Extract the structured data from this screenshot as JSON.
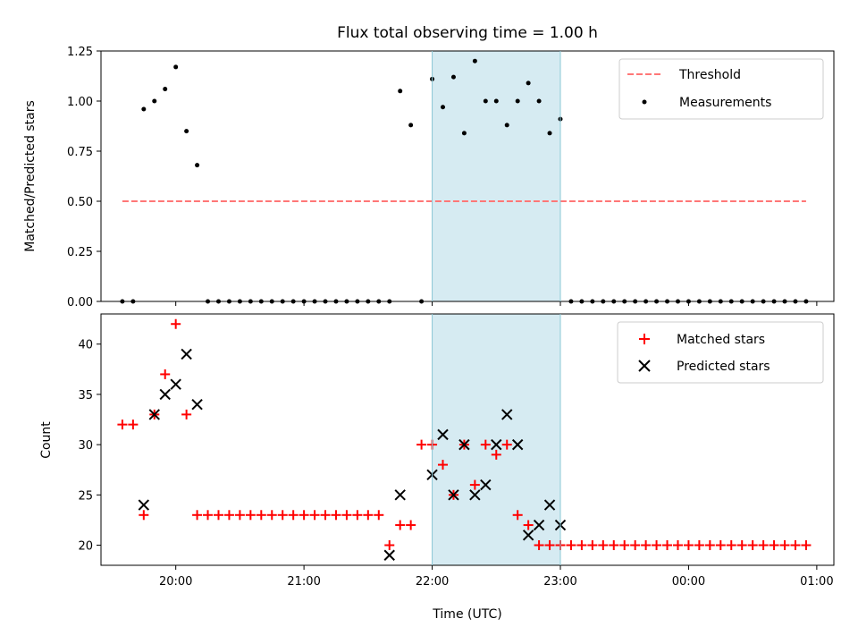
{
  "chart_data": [
    {
      "type": "scatter",
      "title": "Flux total observing time = 1.00 h",
      "xlabel": "",
      "ylabel": "Matched/Predicted stars",
      "xlim": [
        "19:25",
        "01:08"
      ],
      "ylim": [
        0,
        1.25
      ],
      "yticks": [
        "0.00",
        "0.25",
        "0.50",
        "0.75",
        "1.00",
        "1.25"
      ],
      "legend_position": "top-right",
      "shaded_interval": [
        "22:00",
        "23:00"
      ],
      "threshold": {
        "name": "Threshold",
        "value": 0.5,
        "x_start": "19:35",
        "x_end": "00:55",
        "color": "#ff7777"
      },
      "series": [
        {
          "name": "Measurements",
          "color": "#000000",
          "points": [
            [
              "19:35",
              0
            ],
            [
              "19:40",
              0
            ],
            [
              "19:45",
              0.96
            ],
            [
              "19:50",
              1.0
            ],
            [
              "19:55",
              1.06
            ],
            [
              "20:00",
              1.17
            ],
            [
              "20:05",
              0.85
            ],
            [
              "20:10",
              0.68
            ],
            [
              "20:15",
              0
            ],
            [
              "20:20",
              0
            ],
            [
              "20:25",
              0
            ],
            [
              "20:30",
              0
            ],
            [
              "20:35",
              0
            ],
            [
              "20:40",
              0
            ],
            [
              "20:45",
              0
            ],
            [
              "20:50",
              0
            ],
            [
              "20:55",
              0
            ],
            [
              "21:00",
              0
            ],
            [
              "21:05",
              0
            ],
            [
              "21:10",
              0
            ],
            [
              "21:15",
              0
            ],
            [
              "21:20",
              0
            ],
            [
              "21:25",
              0
            ],
            [
              "21:30",
              0
            ],
            [
              "21:35",
              0
            ],
            [
              "21:40",
              0
            ],
            [
              "21:45",
              1.05
            ],
            [
              "21:50",
              0.88
            ],
            [
              "21:55",
              0
            ],
            [
              "22:00",
              1.11
            ],
            [
              "22:05",
              0.97
            ],
            [
              "22:10",
              1.12
            ],
            [
              "22:15",
              0.84
            ],
            [
              "22:20",
              1.2
            ],
            [
              "22:25",
              1.0
            ],
            [
              "22:30",
              1.0
            ],
            [
              "22:35",
              0.88
            ],
            [
              "22:40",
              1.0
            ],
            [
              "22:45",
              1.09
            ],
            [
              "22:50",
              1.0
            ],
            [
              "22:55",
              0.84
            ],
            [
              "23:00",
              0.91
            ],
            [
              "23:05",
              0
            ],
            [
              "23:10",
              0
            ],
            [
              "23:15",
              0
            ],
            [
              "23:20",
              0
            ],
            [
              "23:25",
              0
            ],
            [
              "23:30",
              0
            ],
            [
              "23:35",
              0
            ],
            [
              "23:40",
              0
            ],
            [
              "23:45",
              0
            ],
            [
              "23:50",
              0
            ],
            [
              "23:55",
              0
            ],
            [
              "00:00",
              0
            ],
            [
              "00:05",
              0
            ],
            [
              "00:10",
              0
            ],
            [
              "00:15",
              0
            ],
            [
              "00:20",
              0
            ],
            [
              "00:25",
              0
            ],
            [
              "00:30",
              0
            ],
            [
              "00:35",
              0
            ],
            [
              "00:40",
              0
            ],
            [
              "00:45",
              0
            ],
            [
              "00:50",
              0
            ],
            [
              "00:55",
              0
            ]
          ]
        }
      ]
    },
    {
      "type": "scatter",
      "title": "",
      "xlabel": "Time (UTC)",
      "ylabel": "Count",
      "xlim": [
        "19:25",
        "01:08"
      ],
      "ylim": [
        18,
        43
      ],
      "xticks": [
        "20:00",
        "21:00",
        "22:00",
        "23:00",
        "00:00",
        "01:00"
      ],
      "yticks": [
        "20",
        "25",
        "30",
        "35",
        "40"
      ],
      "legend_position": "top-right",
      "shaded_interval": [
        "22:00",
        "23:00"
      ],
      "series": [
        {
          "name": "Matched stars",
          "color": "#ff0000",
          "marker": "plus",
          "points": [
            [
              "19:35",
              32
            ],
            [
              "19:40",
              32
            ],
            [
              "19:45",
              23
            ],
            [
              "19:50",
              33
            ],
            [
              "19:55",
              37
            ],
            [
              "20:00",
              42
            ],
            [
              "20:05",
              33
            ],
            [
              "20:10",
              23
            ],
            [
              "20:15",
              23
            ],
            [
              "20:20",
              23
            ],
            [
              "20:25",
              23
            ],
            [
              "20:30",
              23
            ],
            [
              "20:35",
              23
            ],
            [
              "20:40",
              23
            ],
            [
              "20:45",
              23
            ],
            [
              "20:50",
              23
            ],
            [
              "20:55",
              23
            ],
            [
              "21:00",
              23
            ],
            [
              "21:05",
              23
            ],
            [
              "21:10",
              23
            ],
            [
              "21:15",
              23
            ],
            [
              "21:20",
              23
            ],
            [
              "21:25",
              23
            ],
            [
              "21:30",
              23
            ],
            [
              "21:35",
              23
            ],
            [
              "21:40",
              20
            ],
            [
              "21:45",
              22
            ],
            [
              "21:50",
              22
            ],
            [
              "21:55",
              30
            ],
            [
              "22:00",
              30
            ],
            [
              "22:05",
              28
            ],
            [
              "22:10",
              25
            ],
            [
              "22:15",
              30
            ],
            [
              "22:20",
              26
            ],
            [
              "22:25",
              30
            ],
            [
              "22:30",
              29
            ],
            [
              "22:35",
              30
            ],
            [
              "22:40",
              23
            ],
            [
              "22:45",
              22
            ],
            [
              "22:50",
              20
            ],
            [
              "22:55",
              20
            ],
            [
              "23:00",
              20
            ],
            [
              "23:05",
              20
            ],
            [
              "23:10",
              20
            ],
            [
              "23:15",
              20
            ],
            [
              "23:20",
              20
            ],
            [
              "23:25",
              20
            ],
            [
              "23:30",
              20
            ],
            [
              "23:35",
              20
            ],
            [
              "23:40",
              20
            ],
            [
              "23:45",
              20
            ],
            [
              "23:50",
              20
            ],
            [
              "23:55",
              20
            ],
            [
              "00:00",
              20
            ],
            [
              "00:05",
              20
            ],
            [
              "00:10",
              20
            ],
            [
              "00:15",
              20
            ],
            [
              "00:20",
              20
            ],
            [
              "00:25",
              20
            ],
            [
              "00:30",
              20
            ],
            [
              "00:35",
              20
            ],
            [
              "00:40",
              20
            ],
            [
              "00:45",
              20
            ],
            [
              "00:50",
              20
            ],
            [
              "00:55",
              20
            ]
          ]
        },
        {
          "name": "Predicted stars",
          "color": "#000000",
          "marker": "x",
          "points": [
            [
              "19:45",
              24
            ],
            [
              "19:50",
              33
            ],
            [
              "19:55",
              35
            ],
            [
              "20:00",
              36
            ],
            [
              "20:05",
              39
            ],
            [
              "20:10",
              34
            ],
            [
              "21:40",
              19
            ],
            [
              "21:45",
              25
            ],
            [
              "22:00",
              27
            ],
            [
              "22:05",
              31
            ],
            [
              "22:10",
              25
            ],
            [
              "22:15",
              30
            ],
            [
              "22:20",
              25
            ],
            [
              "22:25",
              26
            ],
            [
              "22:30",
              30
            ],
            [
              "22:35",
              33
            ],
            [
              "22:40",
              30
            ],
            [
              "22:45",
              21
            ],
            [
              "22:50",
              22
            ],
            [
              "22:55",
              24
            ],
            [
              "23:00",
              22
            ]
          ]
        }
      ]
    }
  ]
}
